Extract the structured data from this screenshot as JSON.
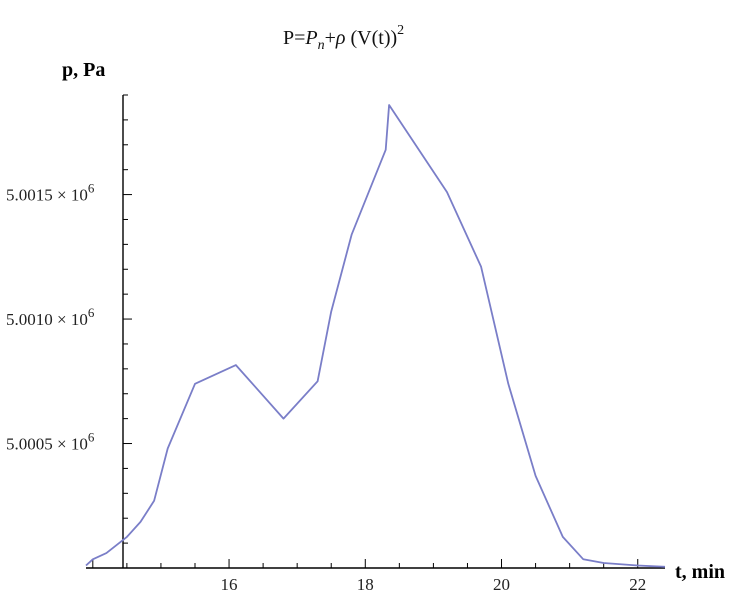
{
  "chart_data": {
    "type": "line",
    "title": {
      "prefix": "P=",
      "pn_main": "P",
      "pn_sub": "n",
      "plus": "+",
      "rho": "ρ",
      "rest": " (V(t))",
      "power": "2"
    },
    "xlabel": "t, min",
    "ylabel": "p, Pa",
    "x_ticks": [
      16,
      18,
      20,
      22
    ],
    "y_ticks": [
      {
        "value": 5000500,
        "mantissa": "5.0005",
        "times": "×",
        "base": "10",
        "exp": "6"
      },
      {
        "value": 5001000,
        "mantissa": "5.0010",
        "times": "×",
        "base": "10",
        "exp": "6"
      },
      {
        "value": 5001500,
        "mantissa": "5.0015",
        "times": "×",
        "base": "10",
        "exp": "6"
      }
    ],
    "xlim": [
      13.9,
      22.4
    ],
    "ylim": [
      5000000,
      5001900
    ],
    "grid": false,
    "line_color": "#7a7ec8",
    "series": [
      {
        "x": [
          13.9,
          14.0,
          14.2,
          14.5,
          14.7,
          14.9,
          15.1,
          15.5,
          16.1,
          16.8,
          17.3,
          17.5,
          17.8,
          18.3,
          18.35,
          19.2,
          19.7,
          20.1,
          20.5,
          20.9,
          21.2,
          21.5,
          22.0,
          22.4
        ],
        "y": [
          5000010,
          5000035,
          5000060,
          5000125,
          5000185,
          5000270,
          5000480,
          5000740,
          5000815,
          5000600,
          5000750,
          5001030,
          5001340,
          5001680,
          5001860,
          5001510,
          5001210,
          5000740,
          5000370,
          5000125,
          5000035,
          5000020,
          5000010,
          5000005
        ]
      }
    ]
  }
}
